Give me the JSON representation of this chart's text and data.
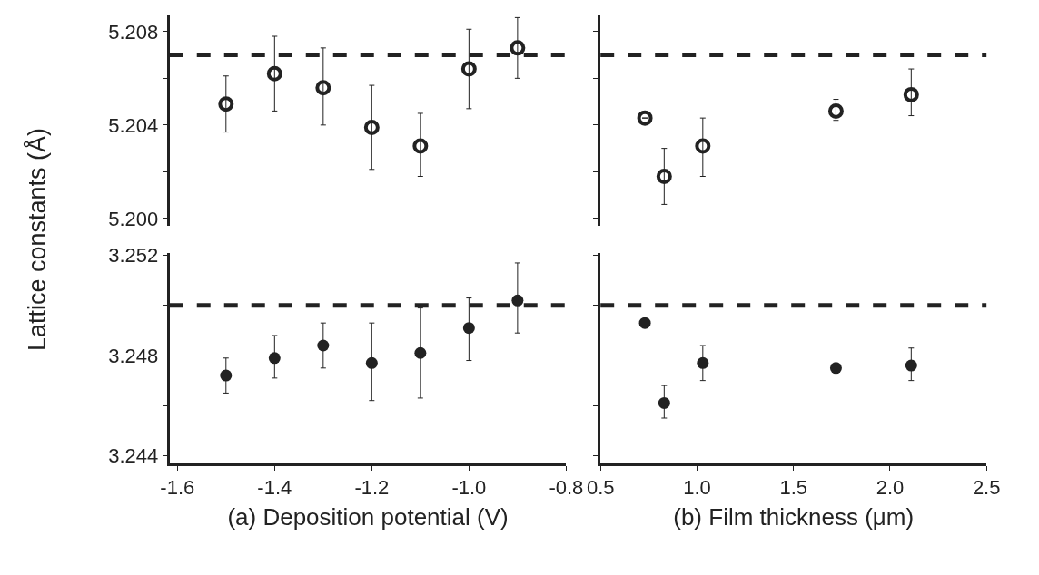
{
  "chart_data": [
    {
      "type": "scatter",
      "ylabel": "Lattice constants (Å)",
      "tick_labels": "y",
      "marker": "circle-open",
      "xlim": [
        -1.616,
        -0.8
      ],
      "ylim": [
        5.1997,
        5.2087
      ],
      "yticks": [
        5.208,
        {
          "value": 5.206,
          "label": null
        },
        5.204,
        {
          "value": 5.202,
          "label": null
        },
        {
          "value": 5.2,
          "label": "5.200"
        }
      ],
      "ref_lines": [
        {
          "axis": "y",
          "value": 5.207,
          "line_style": "dashed",
          "color": "#222222"
        }
      ],
      "series": [
        {
          "color": "#222222",
          "x": [
            -1.5,
            -1.4,
            -1.3,
            -1.2,
            -1.1,
            -1.0,
            -0.9
          ],
          "values": [
            5.2049,
            5.2062,
            5.2056,
            5.2039,
            5.2031,
            5.2064,
            5.2073
          ],
          "errors": [
            [
              5.2037,
              5.2061
            ],
            [
              5.2046,
              5.2078
            ],
            [
              5.204,
              5.2073
            ],
            [
              5.2021,
              5.2057
            ],
            [
              5.2018,
              5.2045
            ],
            [
              5.2047,
              5.2081
            ],
            [
              5.206,
              5.2086
            ]
          ]
        }
      ]
    },
    {
      "type": "scatter",
      "xlabel": "(a) Deposition potential (V)",
      "marker": "circle",
      "xlim": [
        -1.616,
        -0.8
      ],
      "ylim": [
        3.2437,
        3.2521
      ],
      "xticks": [
        -1.6,
        -1.4,
        -1.2,
        {
          "value": -1.0,
          "label": "-1.0"
        },
        -0.8
      ],
      "yticks": [
        3.252,
        {
          "value": 3.25,
          "label": null
        },
        3.248,
        {
          "value": 3.246,
          "label": null
        },
        3.244
      ],
      "ref_lines": [
        {
          "axis": "y",
          "value": 3.25,
          "line_style": "dashed",
          "color": "#222222"
        }
      ],
      "series": [
        {
          "color": "#222222",
          "x": [
            -1.5,
            -1.4,
            -1.3,
            -1.2,
            -1.1,
            -1.0,
            -0.9
          ],
          "values": [
            3.2472,
            3.2479,
            3.2484,
            3.2477,
            3.2481,
            3.2491,
            3.2502
          ],
          "errors": [
            [
              3.2465,
              3.2479
            ],
            [
              3.2471,
              3.2488
            ],
            [
              3.2475,
              3.2493
            ],
            [
              3.2462,
              3.2493
            ],
            [
              3.2463,
              3.2499
            ],
            [
              3.2478,
              3.2503
            ],
            [
              3.2489,
              3.2517
            ]
          ]
        }
      ]
    },
    {
      "type": "scatter",
      "tick_labels": false,
      "marker": "circle-open",
      "xlim": [
        0.5,
        2.5
      ],
      "ylim": [
        5.1997,
        5.2087
      ],
      "yticks": [
        {
          "value": 5.208,
          "label": null
        },
        {
          "value": 5.206,
          "label": null
        },
        {
          "value": 5.204,
          "label": null
        },
        {
          "value": 5.202,
          "label": null
        },
        {
          "value": 5.2,
          "label": null
        }
      ],
      "ref_lines": [
        {
          "axis": "y",
          "value": 5.207,
          "line_style": "dashed",
          "color": "#222222"
        }
      ],
      "series": [
        {
          "color": "#222222",
          "x": [
            0.73,
            0.83,
            1.03,
            1.72,
            2.11
          ],
          "values": [
            5.2043,
            5.2018,
            5.2031,
            5.2046,
            5.2053
          ],
          "errors": [
            null,
            [
              5.2006,
              5.203
            ],
            [
              5.2018,
              5.2043
            ],
            [
              5.2042,
              5.2051
            ],
            [
              5.2044,
              5.2064
            ]
          ]
        }
      ]
    },
    {
      "type": "scatter",
      "xlabel": "(b) Film thickness (μm)",
      "tick_labels": "x",
      "marker": "circle",
      "xlim": [
        0.5,
        2.5
      ],
      "ylim": [
        3.2437,
        3.2521
      ],
      "xticks": [
        0.5,
        {
          "value": 1.0,
          "label": "1.0"
        },
        1.5,
        {
          "value": 2.0,
          "label": "2.0"
        },
        2.5
      ],
      "yticks": [
        {
          "value": 3.252,
          "label": null
        },
        {
          "value": 3.25,
          "label": null
        },
        {
          "value": 3.248,
          "label": null
        },
        {
          "value": 3.246,
          "label": null
        },
        {
          "value": 3.244,
          "label": null
        }
      ],
      "ref_lines": [
        {
          "axis": "y",
          "value": 3.25,
          "line_style": "dashed",
          "color": "#222222"
        }
      ],
      "series": [
        {
          "color": "#222222",
          "x": [
            0.73,
            0.83,
            1.03,
            1.72,
            2.11
          ],
          "values": [
            3.2493,
            3.2461,
            3.2477,
            3.2475,
            3.2476
          ],
          "errors": [
            null,
            [
              3.2455,
              3.2468
            ],
            [
              3.247,
              3.2484
            ],
            null,
            [
              3.247,
              3.2483
            ]
          ]
        }
      ]
    }
  ]
}
